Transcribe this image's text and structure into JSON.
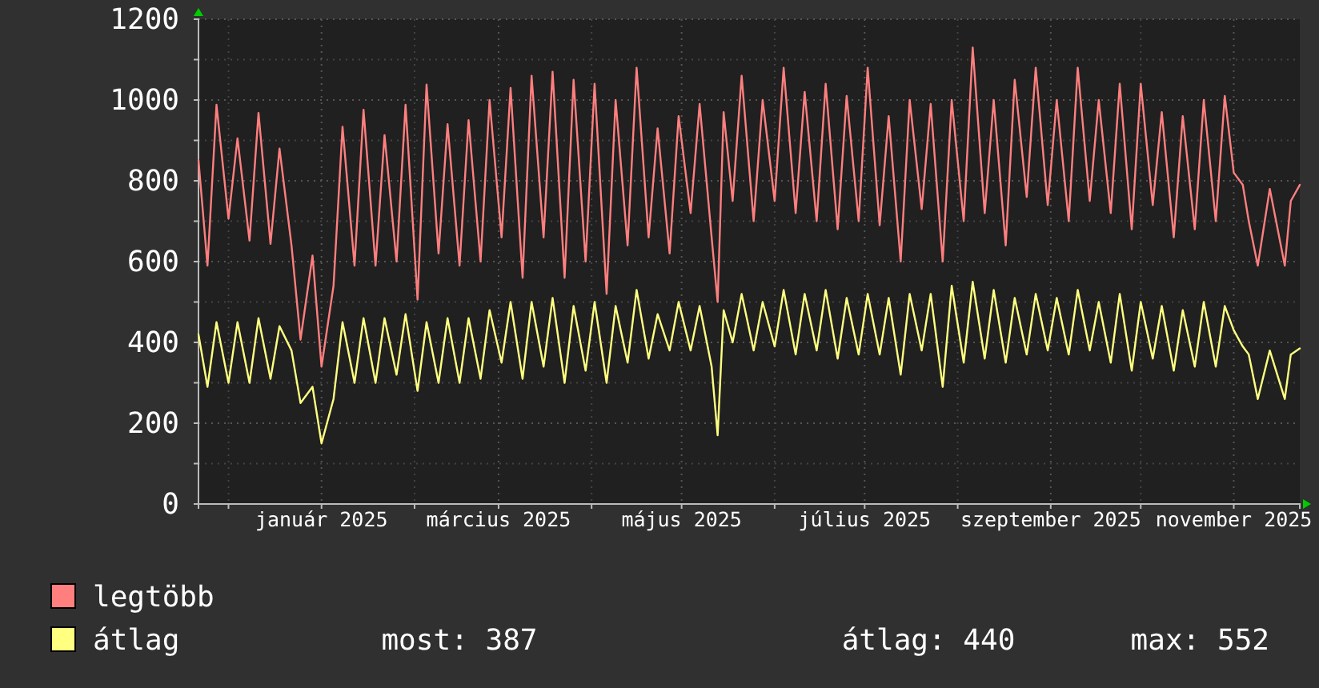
{
  "chart_data": {
    "type": "line",
    "legend": "bottom",
    "grid": true,
    "line_style": "solid",
    "marker": "none",
    "xlim": [
      "2024-11-21",
      "2025-11-23"
    ],
    "xticks": [
      {
        "value": "2024-12-01",
        "label": null
      },
      {
        "value": "2025-01-01",
        "label": "január 2025"
      },
      {
        "value": "2025-02-01",
        "label": null
      },
      {
        "value": "2025-03-01",
        "label": "március 2025"
      },
      {
        "value": "2025-04-01",
        "label": null
      },
      {
        "value": "2025-05-01",
        "label": "május 2025"
      },
      {
        "value": "2025-06-01",
        "label": null
      },
      {
        "value": "2025-07-01",
        "label": "július 2025"
      },
      {
        "value": "2025-08-01",
        "label": null
      },
      {
        "value": "2025-09-01",
        "label": "szeptember 2025"
      },
      {
        "value": "2025-10-01",
        "label": null
      },
      {
        "value": "2025-11-01",
        "label": "november 2025"
      }
    ],
    "ylim": [
      0,
      1200
    ],
    "yticks": [
      0,
      {
        "value": 100,
        "label": null
      },
      200,
      {
        "value": 300,
        "label": null
      },
      400,
      {
        "value": 500,
        "label": null
      },
      600,
      {
        "value": 700,
        "label": null
      },
      800,
      {
        "value": 900,
        "label": null
      },
      1000,
      {
        "value": 1100,
        "label": null
      },
      1200
    ],
    "x": [
      "2024-11-21",
      "2024-11-24",
      "2024-11-27",
      "2024-12-01",
      "2024-12-04",
      "2024-12-08",
      "2024-12-11",
      "2024-12-15",
      "2024-12-18",
      "2024-12-22",
      "2024-12-25",
      "2024-12-29",
      "2025-01-01",
      "2025-01-05",
      "2025-01-08",
      "2025-01-12",
      "2025-01-15",
      "2025-01-19",
      "2025-01-22",
      "2025-01-26",
      "2025-01-29",
      "2025-02-02",
      "2025-02-05",
      "2025-02-09",
      "2025-02-12",
      "2025-02-16",
      "2025-02-19",
      "2025-02-23",
      "2025-02-26",
      "2025-03-02",
      "2025-03-05",
      "2025-03-09",
      "2025-03-12",
      "2025-03-16",
      "2025-03-19",
      "2025-03-23",
      "2025-03-26",
      "2025-03-30",
      "2025-04-02",
      "2025-04-06",
      "2025-04-09",
      "2025-04-13",
      "2025-04-16",
      "2025-04-20",
      "2025-04-23",
      "2025-04-27",
      "2025-04-30",
      "2025-05-04",
      "2025-05-07",
      "2025-05-11",
      "2025-05-13",
      "2025-05-15",
      "2025-05-18",
      "2025-05-21",
      "2025-05-25",
      "2025-05-28",
      "2025-06-01",
      "2025-06-04",
      "2025-06-08",
      "2025-06-11",
      "2025-06-15",
      "2025-06-18",
      "2025-06-22",
      "2025-06-25",
      "2025-06-29",
      "2025-07-02",
      "2025-07-06",
      "2025-07-09",
      "2025-07-13",
      "2025-07-16",
      "2025-07-20",
      "2025-07-23",
      "2025-07-27",
      "2025-07-30",
      "2025-08-03",
      "2025-08-06",
      "2025-08-10",
      "2025-08-13",
      "2025-08-17",
      "2025-08-20",
      "2025-08-24",
      "2025-08-27",
      "2025-08-31",
      "2025-09-03",
      "2025-09-07",
      "2025-09-10",
      "2025-09-14",
      "2025-09-17",
      "2025-09-21",
      "2025-09-24",
      "2025-09-28",
      "2025-10-01",
      "2025-10-05",
      "2025-10-08",
      "2025-10-12",
      "2025-10-15",
      "2025-10-19",
      "2025-10-22",
      "2025-10-26",
      "2025-10-29",
      "2025-11-01",
      "2025-11-04",
      "2025-11-06",
      "2025-11-09",
      "2025-11-13",
      "2025-11-18",
      "2025-11-20",
      "2025-11-23"
    ],
    "series": [
      {
        "name": "legtöbb",
        "color": "#ff7f7f",
        "values": [
          851,
          590,
          988,
          706,
          905,
          652,
          968,
          644,
          880,
          640,
          407,
          615,
          340,
          540,
          934,
          590,
          976,
          590,
          913,
          600,
          988,
          506,
          1038,
          620,
          940,
          590,
          950,
          600,
          1000,
          660,
          1030,
          560,
          1060,
          660,
          1070,
          560,
          1050,
          600,
          1040,
          520,
          1000,
          640,
          1080,
          660,
          930,
          620,
          960,
          720,
          990,
          660,
          500,
          970,
          750,
          1060,
          700,
          1000,
          750,
          1080,
          720,
          1020,
          700,
          1040,
          680,
          1010,
          700,
          1080,
          690,
          960,
          600,
          1000,
          730,
          990,
          600,
          1000,
          700,
          1130,
          720,
          1000,
          640,
          1050,
          760,
          1080,
          740,
          1000,
          700,
          1080,
          750,
          1000,
          720,
          1040,
          680,
          1040,
          740,
          970,
          660,
          960,
          680,
          1000,
          700,
          1010,
          820,
          790,
          700,
          590,
          780,
          590,
          750,
          790
        ]
      },
      {
        "name": "átlag",
        "color": "#ffff80",
        "values": [
          420,
          290,
          450,
          300,
          450,
          300,
          460,
          310,
          440,
          380,
          250,
          290,
          150,
          260,
          450,
          300,
          460,
          300,
          460,
          320,
          470,
          280,
          450,
          300,
          460,
          300,
          460,
          310,
          480,
          350,
          500,
          310,
          500,
          340,
          510,
          300,
          490,
          330,
          500,
          300,
          490,
          350,
          530,
          360,
          470,
          380,
          500,
          380,
          490,
          340,
          170,
          480,
          400,
          520,
          380,
          500,
          390,
          530,
          370,
          520,
          380,
          530,
          360,
          510,
          370,
          520,
          370,
          510,
          320,
          520,
          380,
          520,
          290,
          540,
          350,
          550,
          360,
          530,
          350,
          510,
          370,
          520,
          380,
          510,
          370,
          530,
          380,
          500,
          350,
          520,
          330,
          500,
          360,
          490,
          330,
          480,
          340,
          500,
          340,
          490,
          430,
          390,
          370,
          260,
          380,
          260,
          370,
          385
        ]
      }
    ],
    "annotations": [
      "most: 387",
      "átlag: 440",
      "max: 552"
    ]
  }
}
